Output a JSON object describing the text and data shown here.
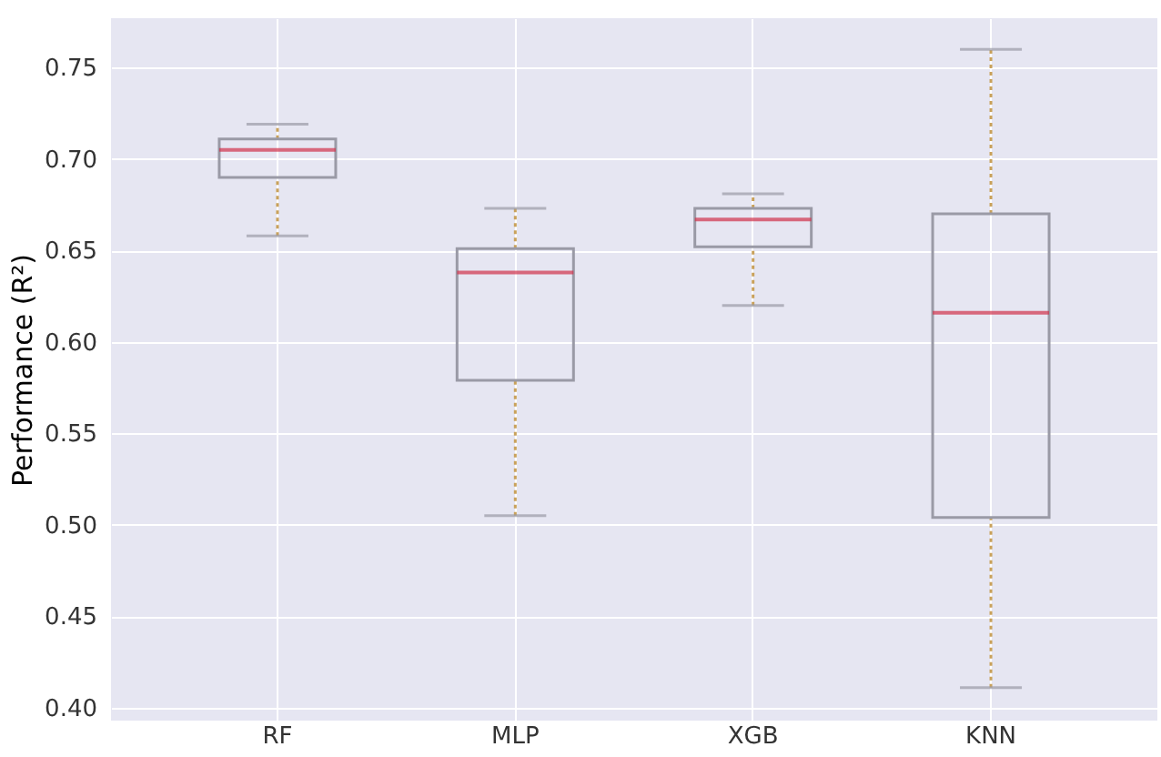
{
  "chart_data": {
    "type": "box",
    "ylabel": "Performance (R²)",
    "categories": [
      "RF",
      "MLP",
      "XGB",
      "KNN"
    ],
    "boxes": [
      {
        "low": 0.658,
        "q1": 0.69,
        "median": 0.705,
        "q3": 0.711,
        "high": 0.719
      },
      {
        "low": 0.505,
        "q1": 0.579,
        "median": 0.638,
        "q3": 0.651,
        "high": 0.673
      },
      {
        "low": 0.62,
        "q1": 0.652,
        "median": 0.667,
        "q3": 0.673,
        "high": 0.681
      },
      {
        "low": 0.411,
        "q1": 0.504,
        "median": 0.616,
        "q3": 0.67,
        "high": 0.76
      }
    ],
    "ylim": [
      0.393,
      0.777
    ],
    "yticks": [
      {
        "value": 0.4,
        "label": "0.40"
      },
      0.45,
      {
        "value": 0.5,
        "label": "0.50"
      },
      0.55,
      {
        "value": 0.6,
        "label": "0.60"
      },
      0.65,
      {
        "value": 0.7,
        "label": "0.70"
      },
      0.75
    ],
    "grid": true
  }
}
